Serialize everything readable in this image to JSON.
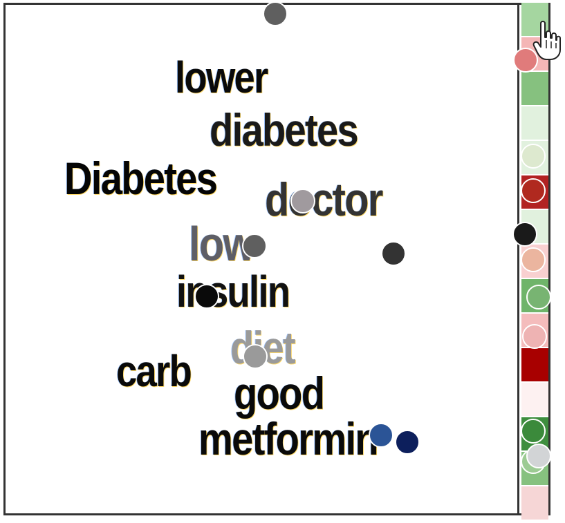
{
  "words": [
    {
      "text": "lower",
      "color": "#0a0a0a"
    },
    {
      "text": "diabetes",
      "color": "#1a1a1a"
    },
    {
      "text": "Diabetes",
      "color": "#050505"
    },
    {
      "text": "doctor",
      "color": "#333333"
    },
    {
      "text": "low",
      "color": "#5e5e66"
    },
    {
      "text": "insulin",
      "color": "#111111"
    },
    {
      "text": "diet",
      "color": "#9a9a9a"
    },
    {
      "text": "carb",
      "color": "#0a0a0a"
    },
    {
      "text": "good",
      "color": "#0a0a0a"
    },
    {
      "text": "metformin",
      "color": "#0a0a0a"
    }
  ],
  "strip_cells": [
    "#a5d6a0",
    "#f4b6b6",
    "#86c17f",
    "#e1f1de",
    "#e1f1de",
    "#b22222",
    "#e1f1de",
    "#f8d0d0",
    "#6fb46a",
    "#f4bcbc",
    "#a80000",
    "#fdf1f1",
    "#3e8e3e",
    "#86c17f",
    "#f6d6d6"
  ],
  "dots": [
    {
      "name": "dot-top",
      "color": "#5f5f5f"
    },
    {
      "name": "dot-strip-pink",
      "color": "#e07b7b"
    },
    {
      "name": "dot-strip-lightgreen",
      "color": "#dde9cf"
    },
    {
      "name": "dot-strip-red",
      "color": "#b0291f"
    },
    {
      "name": "dot-doctor",
      "color": "#a09a9e"
    },
    {
      "name": "dot-strip-black",
      "color": "#1a1a1a"
    },
    {
      "name": "dot-low",
      "color": "#5f5f5f"
    },
    {
      "name": "dot-dark-right",
      "color": "#333333"
    },
    {
      "name": "dot-strip-peach",
      "color": "#ebb59f"
    },
    {
      "name": "dot-insulin",
      "color": "#0a0a0a"
    },
    {
      "name": "dot-strip-green",
      "color": "#78b472"
    },
    {
      "name": "dot-strip-rose",
      "color": "#eeb3b3"
    },
    {
      "name": "dot-diet",
      "color": "#9a9a9a"
    },
    {
      "name": "dot-metformin-blue",
      "color": "#2b5496"
    },
    {
      "name": "dot-metformin-navy",
      "color": "#0d1f5c"
    },
    {
      "name": "dot-strip-darkgreen",
      "color": "#3b8a3b"
    },
    {
      "name": "dot-strip-sage",
      "color": "#9ccb93"
    },
    {
      "name": "dot-strip-silver",
      "color": "#d2d4d6"
    }
  ],
  "cursor_icon": "hand-pointer-icon"
}
